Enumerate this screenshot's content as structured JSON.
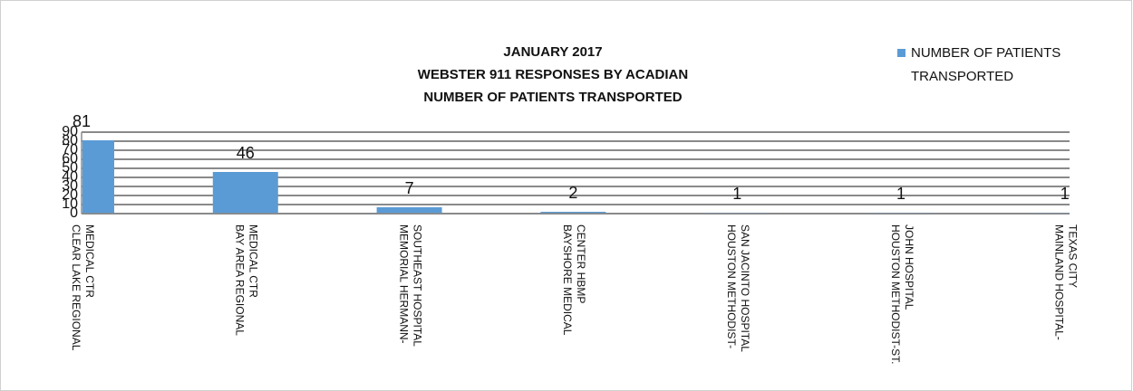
{
  "chart_data": {
    "type": "bar",
    "title": [
      "JANUARY 2017",
      "WEBSTER 911 RESPONSES BY ACADIAN",
      "NUMBER OF PATIENTS TRANSPORTED"
    ],
    "categories": [
      [
        "CLEAR LAKE REGIONAL",
        "MEDICAL CTR"
      ],
      [
        "BAY AREA REGIONAL",
        "MEDICAL CTR"
      ],
      [
        "MEMORIAL HERMANN-",
        "SOUTHEAST HOSPITAL"
      ],
      [
        "BAYSHORE MEDICAL",
        "CENTER HBMP"
      ],
      [
        "HOUSTON METHODIST-",
        "SAN JACINTO HOSPITAL"
      ],
      [
        "HOUSTON METHODIST-ST.",
        "JOHN HOSPITAL"
      ],
      [
        "MAINLAND HOSPITAL-",
        "TEXAS CITY"
      ]
    ],
    "series": [
      {
        "name": [
          "NUMBER OF PATIENTS",
          "TRANSPORTED"
        ],
        "color": "#5b9bd5",
        "values": [
          81,
          46,
          7,
          2,
          1,
          1,
          1
        ]
      }
    ],
    "ylim": [
      0,
      90
    ],
    "yticks": [
      0,
      10,
      20,
      30,
      40,
      50,
      60,
      70,
      80,
      90
    ],
    "grid": true,
    "legend": "top-right"
  }
}
